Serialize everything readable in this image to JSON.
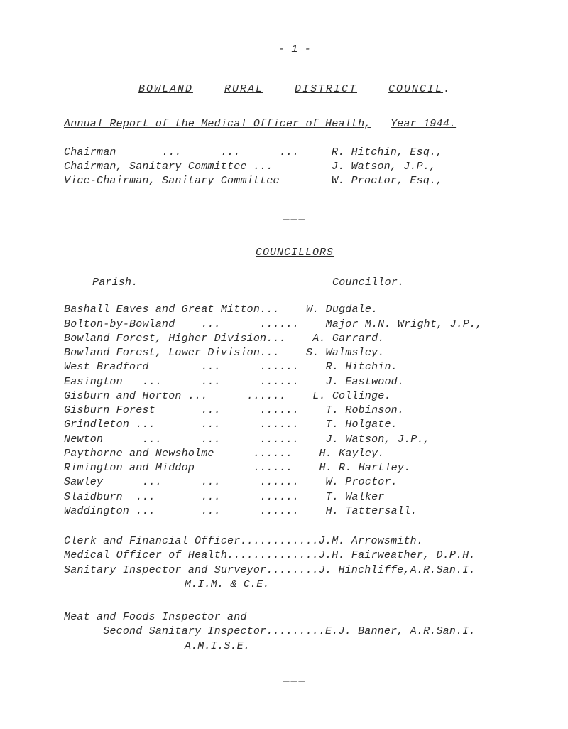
{
  "page_number": "- 1 -",
  "title_parts": {
    "a": "BOWLAND",
    "b": "RURAL",
    "c": "DISTRICT",
    "d": "COUNCIL"
  },
  "subtitle_parts": {
    "a": "Annual Report of the Medical Officer of Health,",
    "b": "Year 1944."
  },
  "officers": [
    {
      "role": "Chairman       ...      ...      ...",
      "name": "R. Hitchin, Esq.,"
    },
    {
      "role": "Chairman, Sanitary Committee ...",
      "name": "J. Watson, J.P.,"
    },
    {
      "role": "Vice-Chairman, Sanitary Committee",
      "name": "W. Proctor, Esq.,"
    }
  ],
  "councillors_heading": "COUNCILLORS",
  "col_parish": "Parish.",
  "col_councillor": "Councillor.",
  "listing": [
    {
      "p": "Bashall Eaves and Great Mitton",
      "d": "...",
      "c": "W. Dugdale."
    },
    {
      "p": "Bolton-by-Bowland    ...      ...",
      "d": "...",
      "c": "Major M.N. Wright, J.P.,"
    },
    {
      "p": "Bowland Forest, Higher Division",
      "d": "...",
      "c": "A. Garrard."
    },
    {
      "p": "Bowland Forest, Lower Division",
      "d": "...",
      "c": "S. Walmsley."
    },
    {
      "p": "West Bradford        ...      ...",
      "d": "...",
      "c": "R. Hitchin."
    },
    {
      "p": "Easington   ...      ...      ...",
      "d": "...",
      "c": "J. Eastwood."
    },
    {
      "p": "Gisburn and Horton ...      ...",
      "d": "...",
      "c": "L. Collinge."
    },
    {
      "p": "Gisburn Forest       ...      ...",
      "d": "...",
      "c": "T. Robinson."
    },
    {
      "p": "Grindleton ...       ...      ...",
      "d": "...",
      "c": "T. Holgate."
    },
    {
      "p": "Newton      ...      ...      ...",
      "d": "...",
      "c": "J. Watson, J.P.,"
    },
    {
      "p": "Paythorne and Newsholme      ...",
      "d": "...",
      "c": "H. Kayley."
    },
    {
      "p": "Rimington and Middop         ...",
      "d": "...",
      "c": "H. R. Hartley."
    },
    {
      "p": "Sawley      ...      ...      ...",
      "d": "...",
      "c": "W. Proctor."
    },
    {
      "p": "Slaidburn  ...       ...      ...",
      "d": "...",
      "c": "T. Walker"
    },
    {
      "p": "Waddington ...       ...      ...",
      "d": "...",
      "c": "H. Tattersall."
    }
  ],
  "appointments1": [
    "Clerk and Financial Officer............J.M. Arrowsmith.",
    "Medical Officer of Health..............J.H. Fairweather, D.P.H.",
    "Sanitary Inspector and Surveyor........J. Hinchliffe,A.R.San.I.",
    "M.I.M. & C.E."
  ],
  "appointments2": [
    "Meat and Foods Inspector and",
    "      Second Sanitary Inspector.........E.J. Banner, A.R.San.I.",
    "A.M.I.S.E."
  ],
  "dashes": "———",
  "final_dashes": "———"
}
